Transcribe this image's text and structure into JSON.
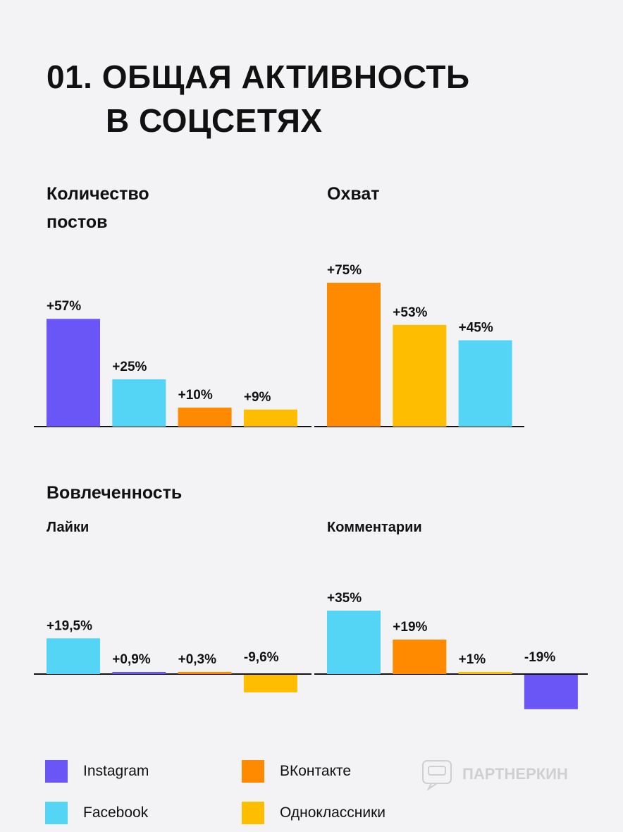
{
  "title": {
    "line1": "01. ОБЩАЯ АКТИВНОСТЬ",
    "line2": "В СОЦСЕТЯХ"
  },
  "colors": {
    "instagram": "#6a55f7",
    "facebook": "#55d5f5",
    "vkontakte": "#ff8a00",
    "odnoklassniki": "#ffbd00",
    "axis": "#111111",
    "background": "#f3f3f5"
  },
  "sections": {
    "posts_title_line1": "Количество",
    "posts_title_line2": "постов",
    "reach_title": "Охват",
    "engagement_title": "Вовлеченность",
    "likes_title": "Лайки",
    "comments_title": "Комментарии"
  },
  "chart_data": [
    {
      "id": "posts",
      "type": "bar",
      "title": "Количество постов",
      "unit": "%",
      "categories": [
        "Instagram",
        "Facebook",
        "ВКонтакте",
        "Одноклассники"
      ],
      "values": [
        57,
        25,
        10,
        9
      ],
      "labels": [
        "+57%",
        "+25%",
        "+10%",
        "+9%"
      ]
    },
    {
      "id": "reach",
      "type": "bar",
      "title": "Охват",
      "unit": "%",
      "categories": [
        "ВКонтакте",
        "Одноклассники",
        "Facebook"
      ],
      "values": [
        75,
        53,
        45
      ],
      "labels": [
        "+75%",
        "+53%",
        "+45%"
      ]
    },
    {
      "id": "likes",
      "type": "bar",
      "title": "Лайки",
      "unit": "%",
      "categories": [
        "Facebook",
        "Instagram",
        "ВКонтакте",
        "Одноклассники"
      ],
      "values": [
        19.5,
        0.9,
        0.3,
        -9.6
      ],
      "labels": [
        "+19,5%",
        "+0,9%",
        "+0,3%",
        "-9,6%"
      ]
    },
    {
      "id": "comments",
      "type": "bar",
      "title": "Комментарии",
      "unit": "%",
      "categories": [
        "Facebook",
        "ВКонтакте",
        "Одноклассники",
        "Instagram"
      ],
      "values": [
        35,
        19,
        1,
        -19
      ],
      "labels": [
        "+35%",
        "+19%",
        "+1%",
        "-19%"
      ]
    }
  ],
  "legend": [
    {
      "label": "Instagram",
      "color": "#6a55f7"
    },
    {
      "label": "ВКонтакте",
      "color": "#ff8a00"
    },
    {
      "label": "Facebook",
      "color": "#55d5f5"
    },
    {
      "label": "Одноклассники",
      "color": "#ffbd00"
    }
  ],
  "watermark": {
    "text": "ПАРТНЕРКИН",
    "icon": "chat-bubble-logo-icon"
  }
}
